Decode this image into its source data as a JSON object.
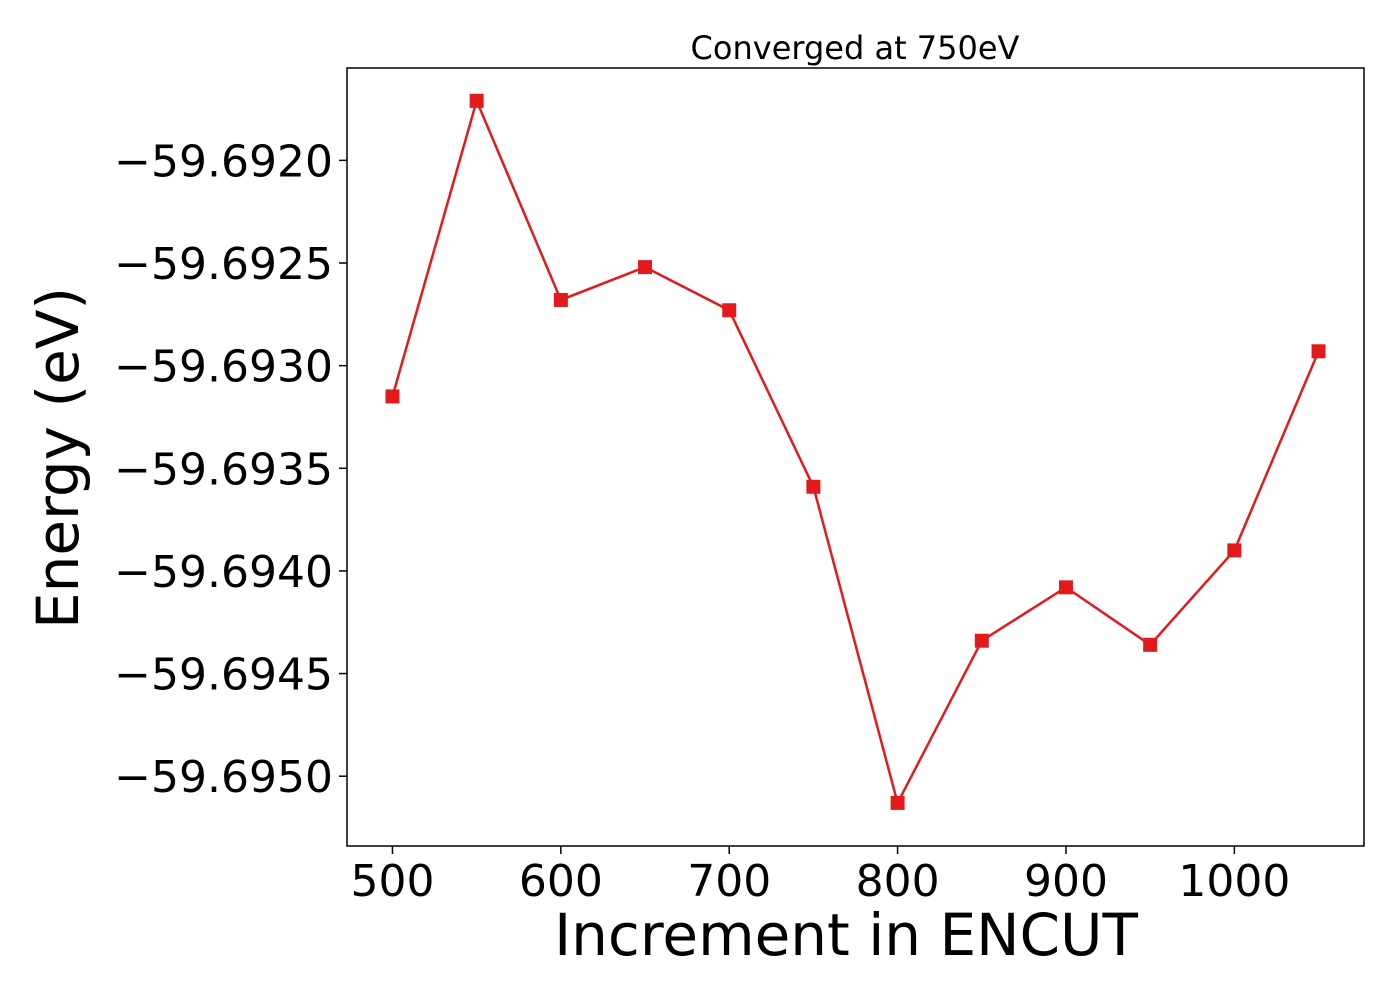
{
  "chart_data": {
    "type": "line",
    "title": "Converged at 750eV",
    "xlabel": "Increment in ENCUT",
    "ylabel": "Energy (eV)",
    "xlim": [
      473,
      1077
    ],
    "ylim": [
      -59.69534,
      -59.69155
    ],
    "xticks": [
      500,
      600,
      700,
      800,
      900,
      1000
    ],
    "yticks": [
      -59.692,
      -59.6925,
      -59.693,
      -59.6935,
      -59.694,
      -59.6945,
      -59.695
    ],
    "ytick_labels": [
      "−59.6920",
      "−59.6925",
      "−59.6930",
      "−59.6935",
      "−59.6940",
      "−59.6945",
      "−59.6950"
    ],
    "grid": false,
    "legend": "none",
    "series": [
      {
        "color": "#e31a1c",
        "marker": "square",
        "x": [
          500,
          550,
          600,
          650,
          700,
          750,
          800,
          850,
          900,
          950,
          1000,
          1050
        ],
        "y": [
          -59.69315,
          -59.69171,
          -59.69268,
          -59.69252,
          -59.69273,
          -59.69359,
          -59.69513,
          -59.69434,
          -59.69408,
          -59.69436,
          -59.6939,
          -59.69293
        ]
      }
    ]
  }
}
